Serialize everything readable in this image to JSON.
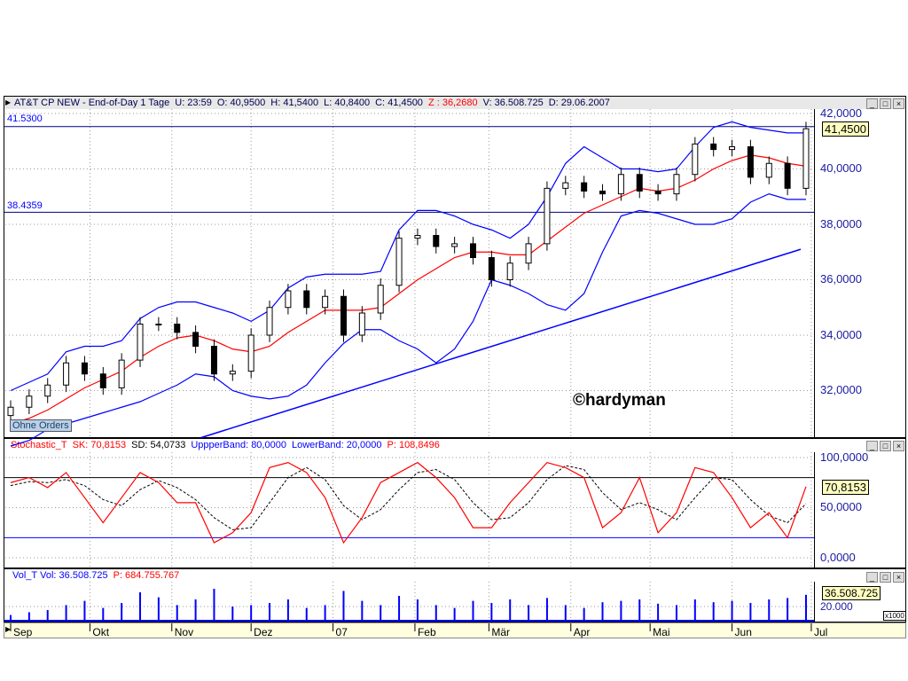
{
  "price_panel": {
    "header": {
      "title": "AT&T CP NEW - End-of-Day 1 Tage",
      "u": "U: 23:59",
      "o": "O: 40,9500",
      "h": "H: 41,5400",
      "l": "L: 40,8400",
      "c": "C: 41,4500",
      "z": "Z : 36,2680",
      "v": "V: 36.508.725",
      "d": "D: 29.06.2007"
    },
    "axis_labels": [
      "42,0000",
      "40,0000",
      "38,0000",
      "36,0000",
      "34,0000",
      "32,0000"
    ],
    "current_value": "41,4500",
    "hline_upper_label": "41.5300",
    "hline_lower_label": "38.4359",
    "watermark": "©hardyman",
    "orders_button": "Ohne Orders"
  },
  "stoch_panel": {
    "header": {
      "name": "Stochastic_T",
      "sk": "SK: 70,8153",
      "sd": "SD: 54,0733",
      "upper": "UppperBand: 80,0000",
      "lower": "LowerBand: 20,0000",
      "p": "P: 108,8496"
    },
    "axis_labels": [
      "100,0000",
      "50,0000",
      "0,0000"
    ],
    "current_value": "70,8153"
  },
  "volume_panel": {
    "header": {
      "name": "Vol_T",
      "vol": "Vol: 36.508.725",
      "p": "P: 684.755.767"
    },
    "axis_labels": [
      "20.000"
    ],
    "current_value": "36.508.725",
    "unit": "x1000"
  },
  "window_buttons": {
    "minimize": "_",
    "maximize": "□",
    "close": "×"
  },
  "date_axis": {
    "months": [
      {
        "label": "Sep",
        "date": "2006-09-01"
      },
      {
        "label": "Okt",
        "date": "2006-10-01"
      },
      {
        "label": "Nov",
        "date": "2006-11-01"
      },
      {
        "label": "Dez",
        "date": "2006-12-01"
      },
      {
        "label": "07",
        "date": "2007-01-01"
      },
      {
        "label": "Feb",
        "date": "2007-02-01"
      },
      {
        "label": "Mär",
        "date": "2007-03-01"
      },
      {
        "label": "Apr",
        "date": "2007-04-01"
      },
      {
        "label": "Mai",
        "date": "2007-05-01"
      },
      {
        "label": "Jun",
        "date": "2007-06-01"
      },
      {
        "label": "Jul",
        "date": "2007-07-01"
      }
    ]
  },
  "colors": {
    "price_candles": "#000000",
    "bollinger": "#0000ff",
    "moving_average": "#ff0000",
    "trendline": "#0000ff",
    "stoch_sk": "#ff0000",
    "stoch_sd": "#000000",
    "stoch_bands": "#0000ff",
    "volume": "#0000ff",
    "date_axis_bg": "#ffffe0"
  },
  "chart_data": [
    {
      "type": "candlestick",
      "title": "AT&T CP NEW - End-of-Day 1 Tage",
      "ylim": [
        30.3,
        42.2
      ],
      "yticks": [
        32,
        34,
        36,
        38,
        40,
        42
      ],
      "grid": true,
      "x": [
        "2006-09-01",
        "2006-09-08",
        "2006-09-15",
        "2006-09-22",
        "2006-09-29",
        "2006-10-06",
        "2006-10-13",
        "2006-10-20",
        "2006-10-27",
        "2006-11-03",
        "2006-11-10",
        "2006-11-17",
        "2006-11-24",
        "2006-12-01",
        "2006-12-08",
        "2006-12-15",
        "2006-12-22",
        "2006-12-29",
        "2007-01-05",
        "2007-01-12",
        "2007-01-19",
        "2007-01-26",
        "2007-02-02",
        "2007-02-09",
        "2007-02-16",
        "2007-02-23",
        "2007-03-02",
        "2007-03-09",
        "2007-03-16",
        "2007-03-23",
        "2007-03-30",
        "2007-04-06",
        "2007-04-13",
        "2007-04-20",
        "2007-04-27",
        "2007-05-04",
        "2007-05-11",
        "2007-05-18",
        "2007-05-25",
        "2007-06-01",
        "2007-06-08",
        "2007-06-15",
        "2007-06-22",
        "2007-06-29"
      ],
      "close": [
        31.4,
        31.8,
        32.2,
        33.0,
        32.6,
        32.1,
        33.1,
        34.4,
        34.4,
        34.1,
        33.6,
        32.6,
        32.7,
        34.0,
        35.0,
        35.6,
        35.0,
        35.4,
        34.0,
        34.8,
        35.8,
        37.5,
        37.6,
        37.2,
        37.3,
        36.8,
        36.0,
        36.6,
        37.3,
        39.3,
        39.5,
        39.2,
        39.1,
        39.8,
        39.2,
        39.1,
        39.8,
        40.9,
        40.7,
        40.8,
        39.7,
        40.2,
        39.3,
        41.45
      ],
      "series": [
        {
          "kind": "bollinger-upper",
          "values": [
            32.0,
            32.3,
            32.6,
            33.4,
            33.6,
            33.6,
            33.8,
            34.6,
            35.0,
            35.2,
            35.2,
            35.0,
            34.8,
            34.5,
            34.9,
            35.7,
            36.1,
            36.2,
            36.2,
            36.2,
            36.3,
            37.8,
            38.5,
            38.5,
            38.3,
            38.0,
            37.8,
            37.5,
            38.0,
            39.0,
            40.2,
            40.8,
            40.4,
            40.0,
            40.0,
            39.9,
            40.0,
            40.8,
            41.5,
            41.7,
            41.5,
            41.4,
            41.3,
            41.3
          ]
        },
        {
          "kind": "moving-average",
          "values": [
            30.8,
            31.0,
            31.3,
            31.7,
            32.1,
            32.4,
            32.7,
            33.2,
            33.6,
            33.9,
            34.0,
            33.8,
            33.5,
            33.4,
            33.6,
            34.1,
            34.5,
            34.9,
            34.9,
            34.9,
            35.0,
            35.5,
            36.0,
            36.4,
            36.8,
            37.0,
            37.0,
            36.9,
            36.9,
            37.4,
            37.9,
            38.4,
            38.7,
            39.0,
            39.3,
            39.2,
            39.3,
            39.6,
            40.0,
            40.3,
            40.5,
            40.4,
            40.2,
            40.1
          ]
        },
        {
          "kind": "bollinger-lower",
          "values": [
            30.0,
            30.2,
            30.6,
            30.8,
            31.0,
            31.2,
            31.4,
            31.6,
            31.9,
            32.2,
            32.6,
            32.5,
            32.0,
            31.8,
            31.7,
            31.8,
            32.2,
            33.0,
            33.7,
            34.2,
            34.2,
            33.8,
            33.5,
            33.0,
            33.5,
            34.5,
            36.0,
            35.8,
            35.5,
            35.1,
            34.9,
            35.5,
            37.0,
            38.3,
            38.5,
            38.4,
            38.2,
            38.0,
            38.0,
            38.2,
            38.8,
            39.1,
            38.9,
            38.9
          ]
        }
      ],
      "horizontal_lines": [
        41.53,
        38.4359
      ],
      "trendline": {
        "from": {
          "date": "2006-11-12",
          "value": 30.3
        },
        "to": {
          "date": "2007-06-27",
          "value": 37.1
        }
      }
    },
    {
      "type": "line",
      "title": "Stochastic_T",
      "ylim": [
        0,
        100
      ],
      "yticks": [
        0,
        50,
        100
      ],
      "bands": [
        80,
        20
      ],
      "sk": [
        75,
        80,
        70,
        85,
        60,
        35,
        60,
        85,
        75,
        55,
        55,
        15,
        25,
        45,
        90,
        95,
        85,
        60,
        15,
        40,
        75,
        85,
        95,
        80,
        60,
        30,
        30,
        55,
        75,
        95,
        90,
        80,
        30,
        45,
        80,
        25,
        45,
        90,
        85,
        60,
        30,
        45,
        20,
        71
      ],
      "sd": [
        72,
        76,
        75,
        78,
        72,
        58,
        52,
        68,
        77,
        70,
        58,
        40,
        28,
        30,
        55,
        80,
        90,
        78,
        52,
        38,
        48,
        68,
        85,
        88,
        78,
        55,
        38,
        40,
        55,
        78,
        92,
        88,
        65,
        48,
        55,
        48,
        38,
        60,
        80,
        78,
        58,
        42,
        35,
        54
      ]
    },
    {
      "type": "bar",
      "title": "Vol_T",
      "unit": "x1000",
      "ylim": [
        0,
        54000
      ],
      "yticks": [
        20000
      ],
      "values": [
        8000,
        12000,
        15000,
        22000,
        28000,
        18000,
        25000,
        40000,
        33000,
        22000,
        30000,
        45000,
        20000,
        22000,
        25000,
        30000,
        18000,
        22000,
        42000,
        28000,
        22000,
        35000,
        30000,
        22000,
        18000,
        28000,
        25000,
        30000,
        22000,
        32000,
        22000,
        18000,
        26000,
        28000,
        30000,
        24000,
        22000,
        30000,
        26000,
        28000,
        25000,
        30000,
        32000,
        36508
      ]
    }
  ]
}
